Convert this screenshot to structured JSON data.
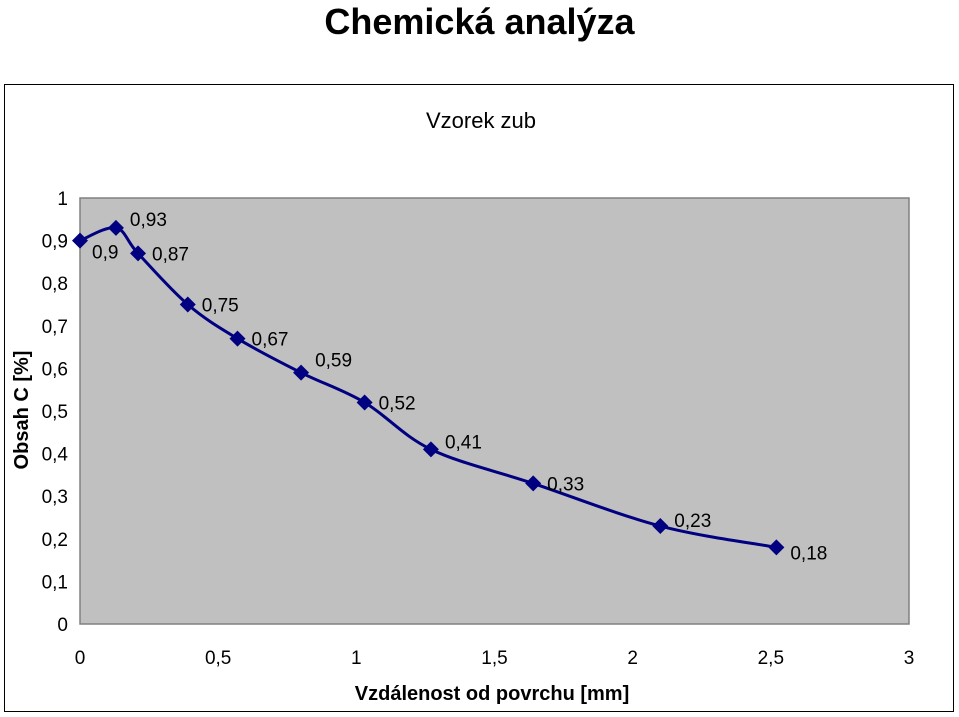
{
  "page": {
    "title": "Chemická analýza"
  },
  "chart_data": {
    "type": "line",
    "title": "Vzorek zub",
    "xlabel": "Vzdálenost od povrchu [mm]",
    "ylabel": "Obsah C [%]",
    "xlim": [
      0,
      3
    ],
    "ylim": [
      0,
      1
    ],
    "x_ticks": [
      "0",
      "0,5",
      "1",
      "1,5",
      "2",
      "2,5",
      "3"
    ],
    "y_ticks": [
      "0",
      "0,1",
      "0,2",
      "0,3",
      "0,4",
      "0,5",
      "0,6",
      "0,7",
      "0,8",
      "0,9",
      "1"
    ],
    "grid": false,
    "legend": "none",
    "colors": {
      "line": "#000080",
      "plot_area": "#c0c0c0"
    },
    "series": [
      {
        "x": [
          0,
          0.13,
          0.21,
          0.39,
          0.57,
          0.8,
          1.03,
          1.27,
          1.64,
          2.1,
          2.52
        ],
        "y": [
          0.9,
          0.93,
          0.87,
          0.75,
          0.67,
          0.59,
          0.52,
          0.41,
          0.33,
          0.23,
          0.18
        ],
        "labels": [
          "0,9",
          "0,93",
          "0,87",
          "0,75",
          "0,67",
          "0,59",
          "0,52",
          "0,41",
          "0,33",
          "0,23",
          "0,18"
        ]
      }
    ]
  }
}
